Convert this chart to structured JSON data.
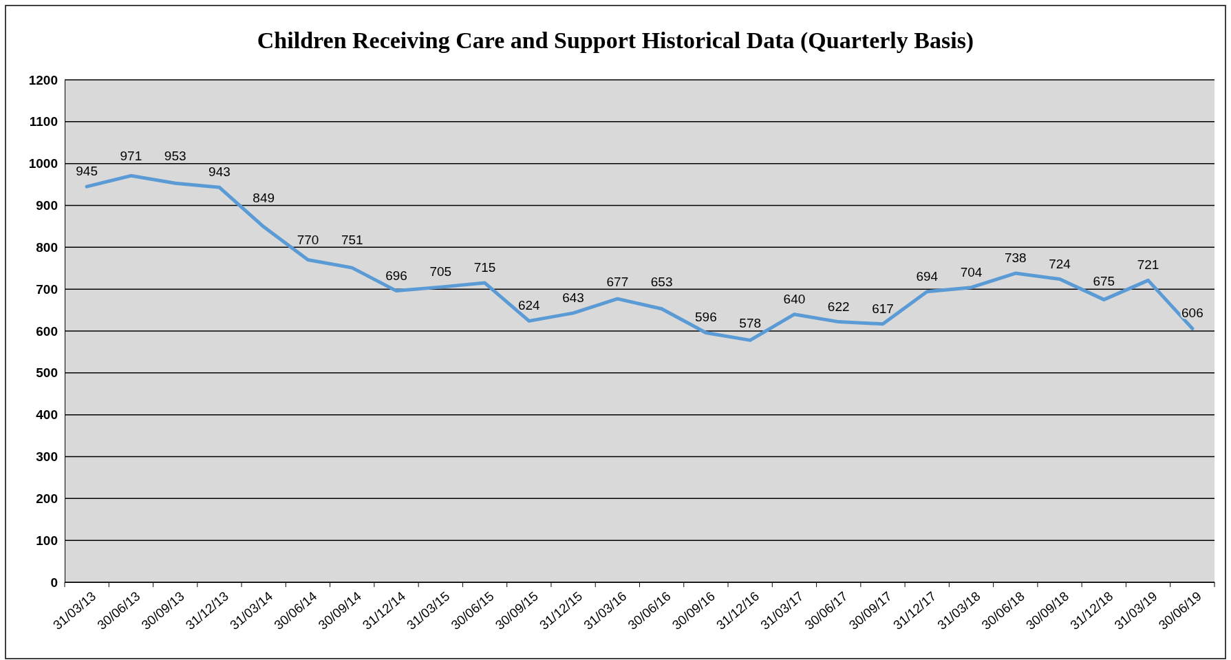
{
  "chart_data": {
    "type": "line",
    "title": "Children Receiving Care and Support Historical Data (Quarterly Basis)",
    "categories": [
      "31/03/13",
      "30/06/13",
      "30/09/13",
      "31/12/13",
      "31/03/14",
      "30/06/14",
      "30/09/14",
      "31/12/14",
      "31/03/15",
      "30/06/15",
      "30/09/15",
      "31/12/15",
      "31/03/16",
      "30/06/16",
      "30/09/16",
      "31/12/16",
      "31/03/17",
      "30/06/17",
      "30/09/17",
      "31/12/17",
      "31/03/18",
      "30/06/18",
      "30/09/18",
      "31/12/18",
      "31/03/19",
      "30/06/19"
    ],
    "series": [
      {
        "color": "#5b9bd5",
        "values": [
          945,
          971,
          953,
          943,
          849,
          770,
          751,
          696,
          705,
          715,
          624,
          643,
          677,
          653,
          596,
          578,
          640,
          622,
          617,
          694,
          704,
          738,
          724,
          675,
          721,
          606
        ]
      }
    ],
    "ylim": [
      0,
      1200
    ],
    "yticks": [
      0,
      100,
      200,
      300,
      400,
      500,
      600,
      700,
      800,
      900,
      1000,
      1100,
      1200
    ],
    "grid": "y",
    "data_labels": true,
    "legend": false,
    "marker": "none",
    "line_style": "solid"
  }
}
